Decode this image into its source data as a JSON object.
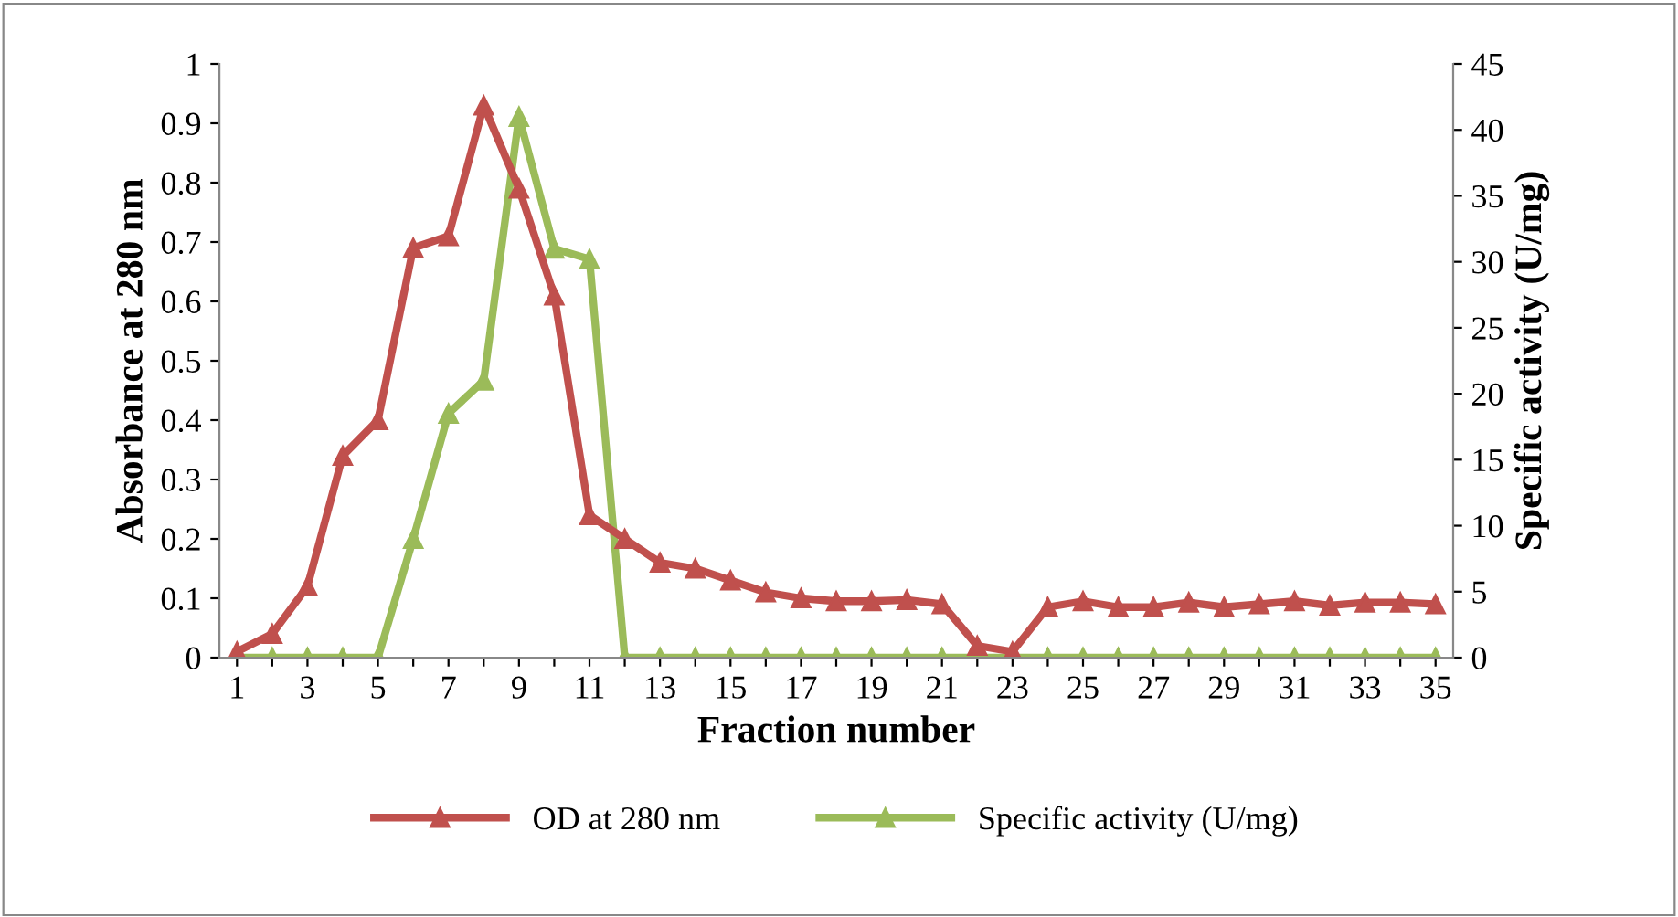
{
  "chart_data": {
    "type": "line",
    "xlabel": "Fraction number",
    "ylabel": "Absorbance at 280 nm",
    "y2label": "Specific activity (U/mg)",
    "categories": [
      "1",
      null,
      "3",
      null,
      "5",
      null,
      "7",
      null,
      "9",
      null,
      "11",
      null,
      "13",
      null,
      "15",
      null,
      "17",
      null,
      "19",
      null,
      "21",
      null,
      "23",
      null,
      "25",
      null,
      "27",
      null,
      "29",
      null,
      "31",
      null,
      "33",
      null,
      "35"
    ],
    "series": [
      {
        "name": "OD at 280 nm",
        "color": "#c0504d",
        "values": [
          0.01,
          0.04,
          0.12,
          0.34,
          0.4,
          0.69,
          0.71,
          0.93,
          0.79,
          0.61,
          0.24,
          0.2,
          0.16,
          0.15,
          0.13,
          0.11,
          0.1,
          0.095,
          0.095,
          0.097,
          0.09,
          0.02,
          0.01,
          0.085,
          0.095,
          0.085,
          0.085,
          0.093,
          0.085,
          0.09,
          0.095,
          0.088,
          0.093,
          0.093,
          0.09
        ]
      },
      {
        "name": "Specific activity (U/mg)",
        "color": "#9bbb59",
        "axis": "y2",
        "values": [
          0,
          0,
          0,
          0,
          0,
          9,
          18.5,
          21,
          41,
          31,
          30.2,
          0,
          0,
          0,
          0,
          0,
          0,
          0,
          0,
          0,
          0,
          0,
          0,
          0,
          0,
          0,
          0,
          0,
          0,
          0,
          0,
          0,
          0,
          0,
          0
        ]
      }
    ],
    "ylim": [
      0,
      1
    ],
    "yticks": [
      0,
      0.1,
      0.2,
      0.3,
      0.4,
      0.5,
      0.6,
      0.7,
      0.8,
      0.9,
      1
    ],
    "y2lim": [
      0,
      45
    ],
    "y2ticks": [
      0,
      5,
      10,
      15,
      20,
      25,
      30,
      35,
      40,
      45
    ],
    "marker": "triangle",
    "line_style": "solid",
    "grid": false,
    "legend": "bottom"
  }
}
